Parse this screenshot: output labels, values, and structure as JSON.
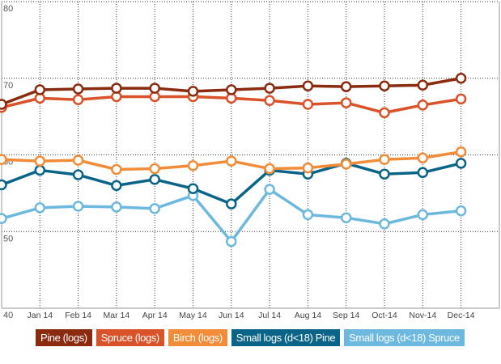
{
  "chart_data": {
    "type": "line",
    "title": "",
    "xlabel": "",
    "ylabel": "",
    "ylim": [
      40,
      80
    ],
    "yticks": [
      "40",
      "50",
      "60",
      "70",
      "80"
    ],
    "grid": true,
    "legend_placement": "bottom",
    "categories": [
      "",
      "Jan 14",
      "Feb 14",
      "Mar 14",
      "Apr 14",
      "May 14",
      "Jun 14",
      "Jul 14",
      "Aug 14",
      "Sep 14",
      "Oct-14",
      "Nov-14",
      "Dec-14"
    ],
    "series": [
      {
        "name": "Pine (logs)",
        "color": "#8a2a0e",
        "values": [
          66.6,
          68.5,
          68.6,
          68.7,
          68.7,
          68.3,
          68.5,
          68.7,
          69.0,
          68.9,
          69.0,
          69.1,
          70.0
        ]
      },
      {
        "name": "Spruce (logs)",
        "color": "#d9522a",
        "values": [
          66.2,
          67.4,
          67.2,
          67.6,
          67.6,
          67.6,
          67.4,
          67.1,
          66.6,
          66.8,
          65.5,
          66.5,
          67.3
        ]
      },
      {
        "name": "Birch (logs)",
        "color": "#f28c38",
        "values": [
          59.4,
          59.2,
          59.3,
          58.1,
          58.2,
          58.6,
          59.2,
          58.2,
          58.3,
          58.8,
          59.4,
          59.6,
          60.4
        ]
      },
      {
        "name": "Small logs (d<18) Pine",
        "color": "#0a6488",
        "values": [
          56.1,
          58.0,
          57.4,
          56.0,
          56.8,
          55.6,
          53.6,
          58.0,
          57.5,
          58.9,
          57.5,
          57.7,
          58.9
        ]
      },
      {
        "name": "Small logs (d<18) Spruce",
        "color": "#6db8de",
        "values": [
          51.7,
          53.1,
          53.3,
          53.2,
          53.0,
          54.7,
          48.7,
          55.5,
          52.2,
          51.8,
          51.0,
          52.2,
          52.7
        ]
      }
    ]
  }
}
